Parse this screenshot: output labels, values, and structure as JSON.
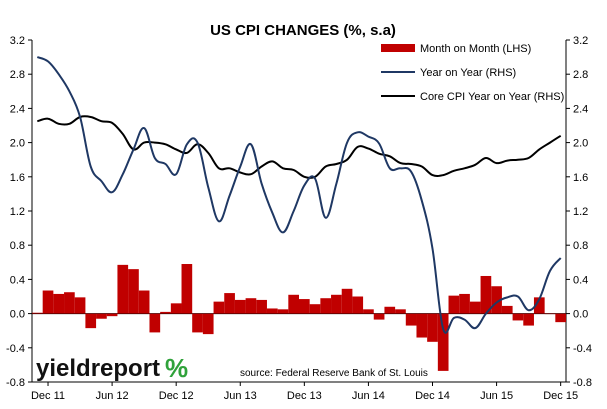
{
  "chart_data": {
    "type": "bar+line",
    "title": "US CPI CHANGES (%, s.a)",
    "source": "source: Federal Reserve Bank of St. Louis",
    "logo": {
      "word": "yieldreport",
      "symbol": "%"
    },
    "x_labels": [
      "Dec 11",
      "Jun 12",
      "Dec 12",
      "Jun 13",
      "Dec 13",
      "Jun 14",
      "Dec 14",
      "Jun 15",
      "Dec 15"
    ],
    "y_ticks": [
      "-0.8",
      "-0.4",
      "0.0",
      "0.4",
      "0.8",
      "1.2",
      "1.6",
      "2.0",
      "2.4",
      "2.8",
      "3.2"
    ],
    "ylim": [
      -0.8,
      3.2
    ],
    "legend_position": "top-right",
    "colors": {
      "bars": "#c00000",
      "yoy": "#1f3864",
      "core": "#000000"
    },
    "months": [
      "2011-11",
      "2011-12",
      "2012-01",
      "2012-02",
      "2012-03",
      "2012-04",
      "2012-05",
      "2012-06",
      "2012-07",
      "2012-08",
      "2012-09",
      "2012-10",
      "2012-11",
      "2012-12",
      "2013-01",
      "2013-02",
      "2013-03",
      "2013-04",
      "2013-05",
      "2013-06",
      "2013-07",
      "2013-08",
      "2013-09",
      "2013-10",
      "2013-11",
      "2013-12",
      "2014-01",
      "2014-02",
      "2014-03",
      "2014-04",
      "2014-05",
      "2014-06",
      "2014-07",
      "2014-08",
      "2014-09",
      "2014-10",
      "2014-11",
      "2014-12",
      "2015-01",
      "2015-02",
      "2015-03",
      "2015-04",
      "2015-05",
      "2015-06",
      "2015-07",
      "2015-08",
      "2015-09",
      "2015-10",
      "2015-11",
      "2015-12"
    ],
    "series": [
      {
        "name": "Month on Month (LHS)",
        "kind": "bar",
        "values": [
          0.01,
          0.27,
          0.23,
          0.25,
          0.19,
          -0.17,
          -0.06,
          -0.03,
          0.57,
          0.52,
          0.27,
          -0.22,
          0.02,
          0.12,
          0.58,
          -0.22,
          -0.24,
          0.14,
          0.24,
          0.16,
          0.18,
          0.16,
          0.06,
          0.05,
          0.22,
          0.17,
          0.11,
          0.18,
          0.22,
          0.29,
          0.2,
          0.05,
          -0.07,
          0.08,
          0.05,
          -0.14,
          -0.28,
          -0.33,
          -0.67,
          0.21,
          0.23,
          0.14,
          0.44,
          0.32,
          0.09,
          -0.08,
          -0.14,
          0.19,
          0.0,
          -0.1
        ]
      },
      {
        "name": "Year on Year (RHS)",
        "kind": "line",
        "values": [
          3.0,
          2.95,
          2.8,
          2.6,
          2.3,
          1.72,
          1.55,
          1.42,
          1.63,
          1.92,
          2.17,
          1.82,
          1.75,
          1.63,
          1.98,
          2.0,
          1.48,
          1.08,
          1.38,
          1.72,
          1.98,
          1.52,
          1.18,
          0.95,
          1.2,
          1.5,
          1.58,
          1.12,
          1.52,
          2.0,
          2.12,
          2.07,
          1.99,
          1.7,
          1.7,
          1.66,
          1.32,
          0.76,
          -0.18,
          -0.05,
          -0.07,
          -0.17,
          0.0,
          0.13,
          0.19,
          0.2,
          0.04,
          0.17,
          0.5,
          0.65
        ]
      },
      {
        "name": "Core CPI Year on Year (RHS)",
        "kind": "line",
        "values": [
          2.25,
          2.28,
          2.22,
          2.22,
          2.3,
          2.3,
          2.25,
          2.23,
          2.1,
          1.92,
          2.0,
          2.0,
          1.98,
          1.92,
          1.88,
          1.98,
          1.88,
          1.7,
          1.7,
          1.65,
          1.63,
          1.72,
          1.78,
          1.7,
          1.68,
          1.6,
          1.6,
          1.72,
          1.75,
          1.8,
          1.95,
          1.93,
          1.87,
          1.84,
          1.76,
          1.75,
          1.72,
          1.62,
          1.62,
          1.67,
          1.7,
          1.74,
          1.82,
          1.76,
          1.79,
          1.8,
          1.82,
          1.92,
          2.0,
          2.08
        ]
      }
    ]
  }
}
